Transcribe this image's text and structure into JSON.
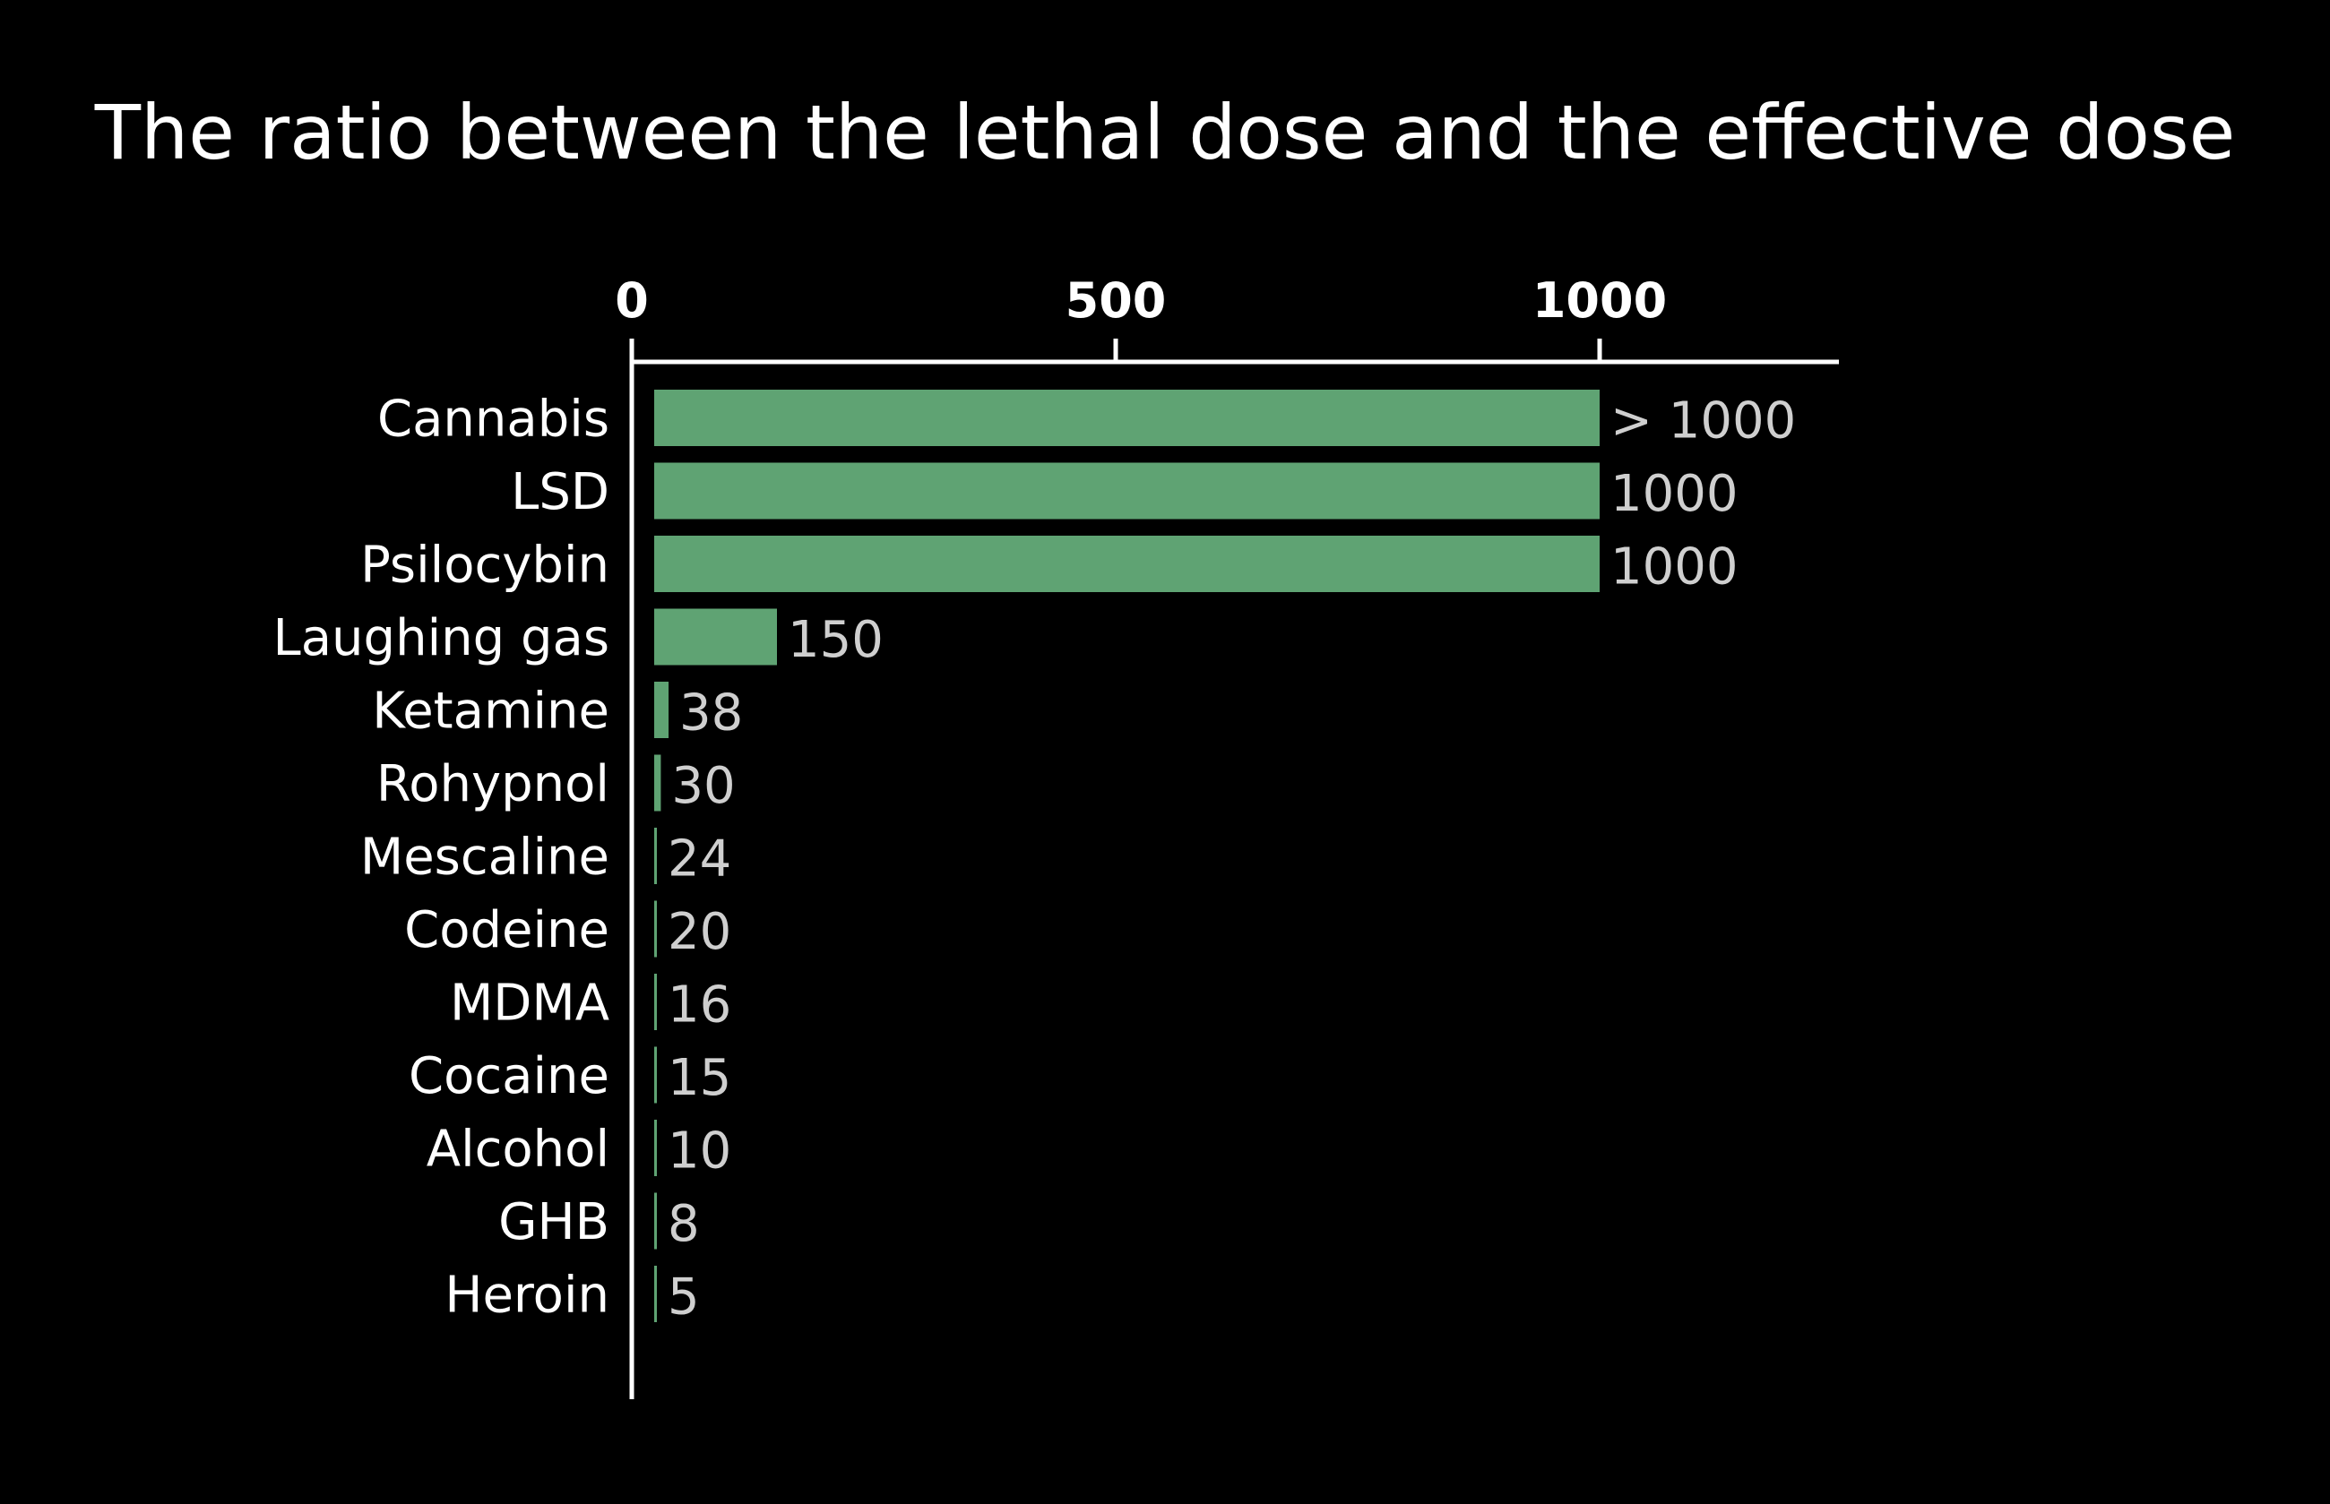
{
  "chart_data": {
    "type": "bar",
    "orientation": "horizontal",
    "title": "The ratio between the lethal dose and the effective dose",
    "xlabel": "",
    "ylabel": "",
    "xlim": [
      0,
      1250
    ],
    "x_ticks": [
      {
        "value": 0,
        "label": "0"
      },
      {
        "value": 500,
        "label": "500"
      },
      {
        "value": 1000,
        "label": "1000"
      }
    ],
    "x_axis_position": "top",
    "grid": false,
    "legend": "none",
    "categories": [
      "Cannabis",
      "LSD",
      "Psilocybin",
      "Laughing gas",
      "Ketamine",
      "Rohypnol",
      "Mescaline",
      "Codeine",
      "MDMA",
      "Cocaine",
      "Alcohol",
      "GHB",
      "Heroin"
    ],
    "values": [
      1000,
      1000,
      1000,
      150,
      38,
      30,
      24,
      20,
      16,
      15,
      10,
      8,
      5
    ],
    "value_labels": [
      "> 1000",
      "1000",
      "1000",
      "150",
      "38",
      "30",
      "24",
      "20",
      "16",
      "15",
      "10",
      "8",
      "5"
    ],
    "colors": {
      "background": "#000000",
      "bar": "#5fa373",
      "axis": "#ffffff",
      "category_text": "#ffffff",
      "value_text": "#cfcfcf"
    }
  }
}
